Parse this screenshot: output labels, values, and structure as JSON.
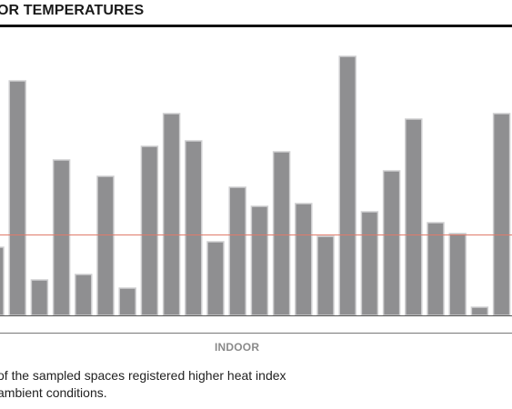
{
  "header": {
    "title": "OR TEMPERATURES"
  },
  "footer": {
    "line1": "of the sampled spaces registered higher heat index",
    "line2": "ambient conditions."
  },
  "colors": {
    "bar": "#8f8f91",
    "bar_edge": "#cfcfd1",
    "reference_line": "#e07a6a",
    "axis": "#555555"
  },
  "chart_data": {
    "type": "bar",
    "xlabel": "INDOOR",
    "ylabel": "",
    "ylim": [
      0,
      100
    ],
    "reference_value": 29.5,
    "values": [
      25,
      86,
      13,
      57,
      15,
      51,
      10,
      62,
      74,
      64,
      27,
      47,
      40,
      60,
      41,
      29,
      95,
      38,
      53,
      72,
      34,
      30,
      3,
      74
    ]
  }
}
